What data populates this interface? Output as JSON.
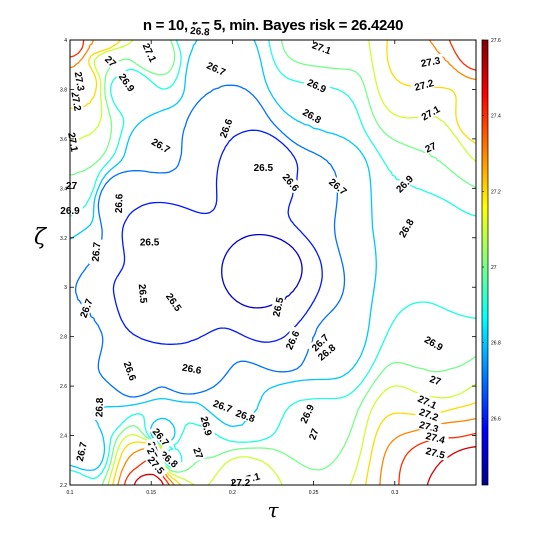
{
  "chart_data": {
    "type": "contour",
    "title": "n = 10, r = 5, min. Bayes risk = 26.4240",
    "xlabel": "τ",
    "ylabel": "ζ",
    "xlim": [
      0.1,
      0.35
    ],
    "ylim": [
      2.2,
      4.0
    ],
    "x_ticks": [
      "0.1",
      "0.15",
      "0.2",
      "0.25",
      "0.3"
    ],
    "y_ticks": [
      "2.2",
      "2.4",
      "2.6",
      "2.8",
      "3",
      "3.2",
      "3.4",
      "3.6",
      "3.8",
      "4"
    ],
    "colorbar": {
      "min": 26.424,
      "max": 27.6,
      "ticks": [
        "26.6",
        "26.8",
        "27",
        "27.2",
        "27.4",
        "27.6"
      ],
      "colormap": "jet"
    },
    "contour_levels": [
      26.5,
      26.6,
      26.7,
      26.8,
      26.9,
      27.0,
      27.1,
      27.2,
      27.3,
      27.4,
      27.5
    ],
    "minimum": {
      "x": 0.22,
      "y": 3.05,
      "value": 26.424
    },
    "grid": false,
    "contour_labels": [
      {
        "text": "26.5",
        "x": 0.219,
        "y": 3.484,
        "angle": 0
      },
      {
        "text": "26.5",
        "x": 0.149,
        "y": 3.183,
        "angle": 0
      },
      {
        "text": "26.5",
        "x": 0.145,
        "y": 2.974,
        "angle": 85
      },
      {
        "text": "26.5",
        "x": 0.164,
        "y": 2.94,
        "angle": 55
      },
      {
        "text": "26.5",
        "x": 0.228,
        "y": 2.92,
        "angle": -78
      },
      {
        "text": "26.6",
        "x": 0.196,
        "y": 3.643,
        "angle": -70
      },
      {
        "text": "26.6",
        "x": 0.13,
        "y": 3.339,
        "angle": -88
      },
      {
        "text": "26.6",
        "x": 0.236,
        "y": 3.424,
        "angle": 50
      },
      {
        "text": "26.6",
        "x": 0.237,
        "y": 2.786,
        "angle": -65
      },
      {
        "text": "26.6",
        "x": 0.137,
        "y": 2.661,
        "angle": 70
      },
      {
        "text": "26.6",
        "x": 0.175,
        "y": 2.67,
        "angle": 10
      },
      {
        "text": "26.7",
        "x": 0.19,
        "y": 3.884,
        "angle": 25
      },
      {
        "text": "26.7",
        "x": 0.156,
        "y": 3.573,
        "angle": 30
      },
      {
        "text": "26.7",
        "x": 0.116,
        "y": 3.143,
        "angle": -85
      },
      {
        "text": "26.7",
        "x": 0.11,
        "y": 2.915,
        "angle": -70
      },
      {
        "text": "26.7",
        "x": 0.265,
        "y": 3.407,
        "angle": 40
      },
      {
        "text": "26.7",
        "x": 0.254,
        "y": 2.776,
        "angle": -45
      },
      {
        "text": "26.7",
        "x": 0.194,
        "y": 2.519,
        "angle": 20
      },
      {
        "text": "26.7",
        "x": 0.156,
        "y": 2.394,
        "angle": 50
      },
      {
        "text": "26.7",
        "x": 0.107,
        "y": 2.335,
        "angle": -78
      },
      {
        "text": "26.8",
        "x": 0.18,
        "y": 4.036,
        "angle": 5
      },
      {
        "text": "26.8",
        "x": 0.249,
        "y": 3.693,
        "angle": 30
      },
      {
        "text": "26.8",
        "x": 0.307,
        "y": 3.239,
        "angle": -60
      },
      {
        "text": "26.8",
        "x": 0.136,
        "y": 3.815,
        "angle": 60
      },
      {
        "text": "26.8",
        "x": 0.118,
        "y": 2.514,
        "angle": -88
      },
      {
        "text": "26.8",
        "x": 0.258,
        "y": 2.737,
        "angle": -40
      },
      {
        "text": "26.8",
        "x": 0.208,
        "y": 2.48,
        "angle": 20
      },
      {
        "text": "26.8",
        "x": 0.161,
        "y": 2.304,
        "angle": 40
      },
      {
        "text": "26.9",
        "x": 0.252,
        "y": 3.815,
        "angle": 25
      },
      {
        "text": "26.9",
        "x": 0.306,
        "y": 3.418,
        "angle": -45
      },
      {
        "text": "26.9",
        "x": 0.135,
        "y": 3.828,
        "angle": 55
      },
      {
        "text": "26.9",
        "x": 0.1,
        "y": 3.311,
        "angle": 0
      },
      {
        "text": "26.9",
        "x": 0.324,
        "y": 2.773,
        "angle": 30
      },
      {
        "text": "26.9",
        "x": 0.184,
        "y": 2.439,
        "angle": 75
      },
      {
        "text": "26.9",
        "x": 0.246,
        "y": 2.488,
        "angle": -65
      },
      {
        "text": "27",
        "x": 0.125,
        "y": 3.914,
        "angle": 45
      },
      {
        "text": "27",
        "x": 0.101,
        "y": 3.411,
        "angle": 0
      },
      {
        "text": "27",
        "x": 0.322,
        "y": 3.566,
        "angle": -25
      },
      {
        "text": "27",
        "x": 0.325,
        "y": 2.624,
        "angle": 20
      },
      {
        "text": "27",
        "x": 0.179,
        "y": 2.329,
        "angle": 70
      },
      {
        "text": "27",
        "x": 0.25,
        "y": 2.406,
        "angle": -70
      },
      {
        "text": "27.1",
        "x": 0.149,
        "y": 3.949,
        "angle": 65
      },
      {
        "text": "27.1",
        "x": 0.102,
        "y": 3.587,
        "angle": 80
      },
      {
        "text": "27.1",
        "x": 0.255,
        "y": 3.968,
        "angle": 20
      },
      {
        "text": "27.1",
        "x": 0.322,
        "y": 3.705,
        "angle": -30
      },
      {
        "text": "27.1",
        "x": 0.32,
        "y": 2.536,
        "angle": 25
      },
      {
        "text": "27.1",
        "x": 0.211,
        "y": 2.227,
        "angle": -15
      },
      {
        "text": "27.2",
        "x": 0.104,
        "y": 3.752,
        "angle": 80
      },
      {
        "text": "27.2",
        "x": 0.318,
        "y": 3.818,
        "angle": -15
      },
      {
        "text": "27.2",
        "x": 0.321,
        "y": 2.485,
        "angle": 20
      },
      {
        "text": "27.2",
        "x": 0.205,
        "y": 2.211,
        "angle": 0
      },
      {
        "text": "27.3",
        "x": 0.106,
        "y": 3.833,
        "angle": 80
      },
      {
        "text": "27.3",
        "x": 0.322,
        "y": 3.912,
        "angle": -10
      },
      {
        "text": "27.3",
        "x": 0.321,
        "y": 2.436,
        "angle": 15
      },
      {
        "text": "27.3",
        "x": 0.152,
        "y": 2.337,
        "angle": 70
      },
      {
        "text": "27.4",
        "x": 0.325,
        "y": 2.391,
        "angle": 15
      },
      {
        "text": "27.4",
        "x": 0.152,
        "y": 2.313,
        "angle": 60
      },
      {
        "text": "27.5",
        "x": 0.325,
        "y": 2.33,
        "angle": 15
      },
      {
        "text": "27.5",
        "x": 0.153,
        "y": 2.28,
        "angle": 50
      }
    ]
  }
}
